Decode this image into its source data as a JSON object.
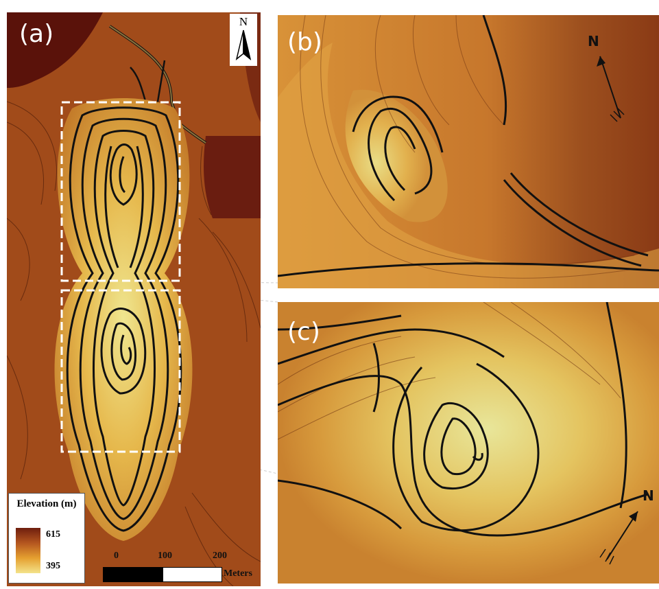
{
  "panels": {
    "a": {
      "label": "(a)"
    },
    "b": {
      "label": "(b)"
    },
    "c": {
      "label": "(c)"
    }
  },
  "north_arrow": {
    "label": "N"
  },
  "legend": {
    "title": "Elevation (m)",
    "max": "615",
    "min": "395",
    "colors": [
      "#6e1e0e",
      "#b5561f",
      "#e5a030",
      "#f3e38a"
    ]
  },
  "scale_bar": {
    "ticks": [
      "0",
      "100",
      "200"
    ],
    "unit": "Meters"
  }
}
